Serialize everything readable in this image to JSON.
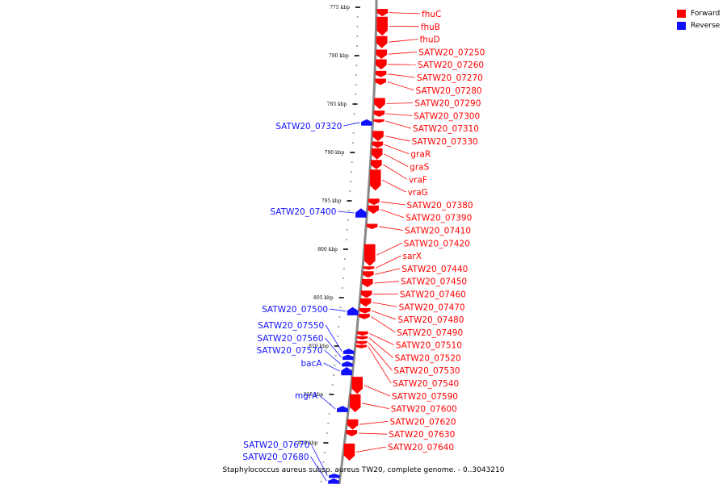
{
  "colors": {
    "forward": "#ff0000",
    "reverse": "#1010ff",
    "backbone": "#888888"
  },
  "legend": [
    {
      "label": "Forward",
      "color": "#ff0000"
    },
    {
      "label": "Reverse",
      "color": "#1010ff"
    }
  ],
  "caption": "Staphylococcus aureus subsp. aureus TW20, complete genome. - 0..3043210",
  "view": {
    "start_kbp": 774,
    "end_kbp": 824.5
  },
  "ticks": [
    {
      "kbp": 775,
      "label": "775 kbp"
    },
    {
      "kbp": 780,
      "label": "780 kbp"
    },
    {
      "kbp": 785,
      "label": "785 kbp"
    },
    {
      "kbp": 790,
      "label": "790 kbp"
    },
    {
      "kbp": 795,
      "label": "795 kbp"
    },
    {
      "kbp": 800,
      "label": "800 kbp"
    },
    {
      "kbp": 805,
      "label": "805 kbp"
    },
    {
      "kbp": 810,
      "label": "810 kbp"
    },
    {
      "kbp": 815,
      "label": "815 kbp"
    },
    {
      "kbp": 820,
      "label": "820 kbp"
    }
  ],
  "forward_genes": [
    {
      "name": "fhuC",
      "start": 775.2,
      "end": 775.9
    },
    {
      "name": "fhuB",
      "start": 776.0,
      "end": 777.9
    },
    {
      "name": "fhuD",
      "start": 778.0,
      "end": 779.2
    },
    {
      "name": "SATW20_07250",
      "start": 779.4,
      "end": 780.3
    },
    {
      "name": "SATW20_07260",
      "start": 780.4,
      "end": 781.4
    },
    {
      "name": "SATW20_07270",
      "start": 781.6,
      "end": 782.2
    },
    {
      "name": "SATW20_07280",
      "start": 782.4,
      "end": 783.0
    },
    {
      "name": "SATW20_07290",
      "start": 784.4,
      "end": 785.5
    },
    {
      "name": "SATW20_07300",
      "start": 785.7,
      "end": 786.3
    },
    {
      "name": "SATW20_07310",
      "start": 786.6,
      "end": 786.9
    },
    {
      "name": "SATW20_07330",
      "start": 787.8,
      "end": 788.8
    },
    {
      "name": "graR",
      "start": 788.9,
      "end": 789.5
    },
    {
      "name": "graS",
      "start": 789.6,
      "end": 790.7
    },
    {
      "name": "vraF",
      "start": 790.8,
      "end": 791.7
    },
    {
      "name": "vraG",
      "start": 791.8,
      "end": 793.9
    },
    {
      "name": "SATW20_07380",
      "start": 794.8,
      "end": 795.4
    },
    {
      "name": "SATW20_07390",
      "start": 795.5,
      "end": 796.3
    },
    {
      "name": "SATW20_07410",
      "start": 797.4,
      "end": 797.9
    },
    {
      "name": "SATW20_07420",
      "start": 799.5,
      "end": 801.7
    },
    {
      "name": "sarX",
      "start": 801.8,
      "end": 802.1
    },
    {
      "name": "SATW20_07440",
      "start": 802.3,
      "end": 802.9
    },
    {
      "name": "SATW20_07450",
      "start": 803.1,
      "end": 803.9
    },
    {
      "name": "SATW20_07460",
      "start": 804.3,
      "end": 805.0
    },
    {
      "name": "SATW20_07470",
      "start": 805.1,
      "end": 805.9
    },
    {
      "name": "SATW20_07480",
      "start": 806.1,
      "end": 806.6
    },
    {
      "name": "SATW20_07490",
      "start": 806.7,
      "end": 807.2
    },
    {
      "name": "SATW20_07510",
      "start": 808.5,
      "end": 808.9
    },
    {
      "name": "SATW20_07520",
      "start": 809.0,
      "end": 809.3
    },
    {
      "name": "SATW20_07530",
      "start": 809.5,
      "end": 809.8
    },
    {
      "name": "SATW20_07540",
      "start": 809.9,
      "end": 810.2
    },
    {
      "name": "SATW20_07590",
      "start": 813.2,
      "end": 814.9
    },
    {
      "name": "SATW20_07600",
      "start": 815.0,
      "end": 816.8
    },
    {
      "name": "SATW20_07620",
      "start": 817.6,
      "end": 818.6
    },
    {
      "name": "SATW20_07630",
      "start": 818.7,
      "end": 819.3
    },
    {
      "name": "SATW20_07640",
      "start": 820.1,
      "end": 821.8
    }
  ],
  "reverse_genes": [
    {
      "name": "SATW20_07320",
      "start": 786.6,
      "end": 787.2
    },
    {
      "name": "SATW20_07400",
      "start": 795.8,
      "end": 796.7
    },
    {
      "name": "SATW20_07500",
      "start": 806.0,
      "end": 806.8
    },
    {
      "name": "SATW20_07550",
      "start": 810.3,
      "end": 810.8
    },
    {
      "name": "SATW20_07560",
      "start": 810.9,
      "end": 811.4
    },
    {
      "name": "SATW20_07570",
      "start": 811.6,
      "end": 812.1
    },
    {
      "name": "bacA",
      "start": 812.2,
      "end": 813.0
    },
    {
      "name": "mgrA",
      "start": 816.2,
      "end": 816.8
    },
    {
      "name": "SATW20_07670",
      "start": 823.2,
      "end": 823.6
    },
    {
      "name": "SATW20_07680",
      "start": 823.7,
      "end": 824.2
    }
  ]
}
